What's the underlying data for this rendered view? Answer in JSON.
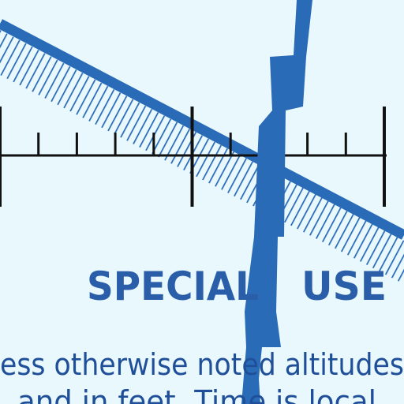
{
  "labels": [
    "SPECIAL",
    "USE"
  ],
  "note_lines": [
    "ess otherwise noted altitudes",
    "and in feet. Time is local"
  ]
}
